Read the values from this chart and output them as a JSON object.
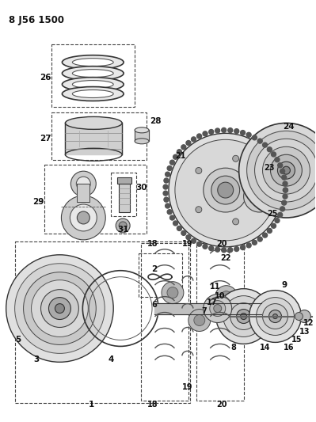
{
  "title": "8 J56 1500",
  "bg_color": "#ffffff",
  "fg_color": "#000000",
  "fig_width": 3.99,
  "fig_height": 5.33,
  "dpi": 100
}
